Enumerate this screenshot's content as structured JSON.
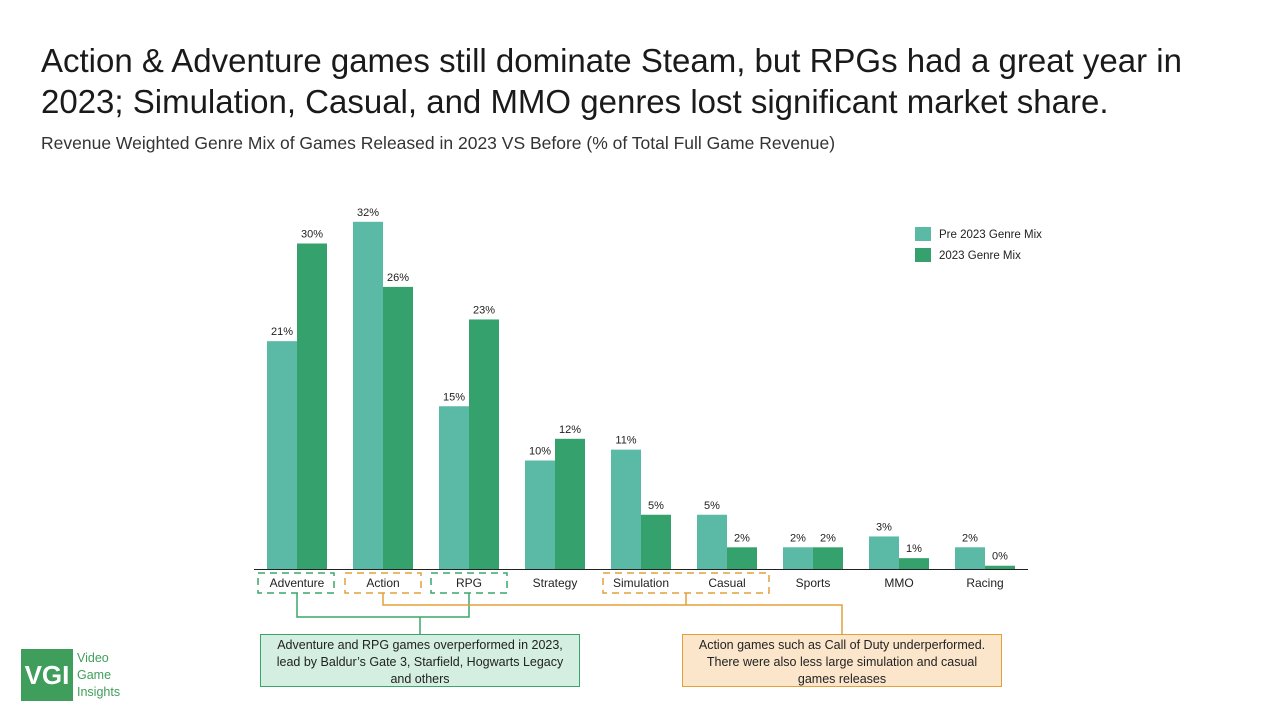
{
  "title": "Action & Adventure games still dominate Steam, but RPGs had a great year in 2023; Simulation, Casual, and MMO genres lost significant market share.",
  "subtitle": "Revenue Weighted Genre Mix of Games Released in 2023 VS Before (% of Total Full Game Revenue)",
  "colors": {
    "pre": "#5bbaa5",
    "post": "#35a26d",
    "green_box": "#3aa56a",
    "orange_box": "#e3a03a",
    "logo": "#3f9e5b"
  },
  "chart_data": {
    "type": "bar",
    "categories": [
      "Adventure",
      "Action",
      "RPG",
      "Strategy",
      "Simulation",
      "Casual",
      "Sports",
      "MMO",
      "Racing"
    ],
    "series": [
      {
        "name": "Pre 2023 Genre Mix",
        "values": [
          21,
          32,
          15,
          10,
          11,
          5,
          2,
          3,
          2
        ],
        "labels": [
          "21%",
          "32%",
          "15%",
          "10%",
          "11%",
          "5%",
          "2%",
          "3%",
          "2%"
        ]
      },
      {
        "name": "2023 Genre Mix",
        "values": [
          30,
          26,
          23,
          12,
          5,
          2,
          2,
          1,
          0.3
        ],
        "labels": [
          "30%",
          "26%",
          "23%",
          "12%",
          "5%",
          "2%",
          "2%",
          "1%",
          "0%"
        ]
      }
    ],
    "ylim": [
      0,
      32
    ],
    "legend": "top-right",
    "highlight_groups": {
      "green": [
        "Adventure",
        "RPG"
      ],
      "orange": [
        "Action",
        "Simulation",
        "Casual"
      ]
    }
  },
  "notes": {
    "green": "Adventure and RPG games overperformed in 2023, lead by Baldur’s Gate 3, Starfield, Hogwarts Legacy and others",
    "orange": "Action games such as Call of Duty underperformed. There were also less large simulation and casual games releases"
  },
  "logo": {
    "mark": "VGI",
    "words": [
      "Video",
      "Game",
      "Insights"
    ]
  }
}
